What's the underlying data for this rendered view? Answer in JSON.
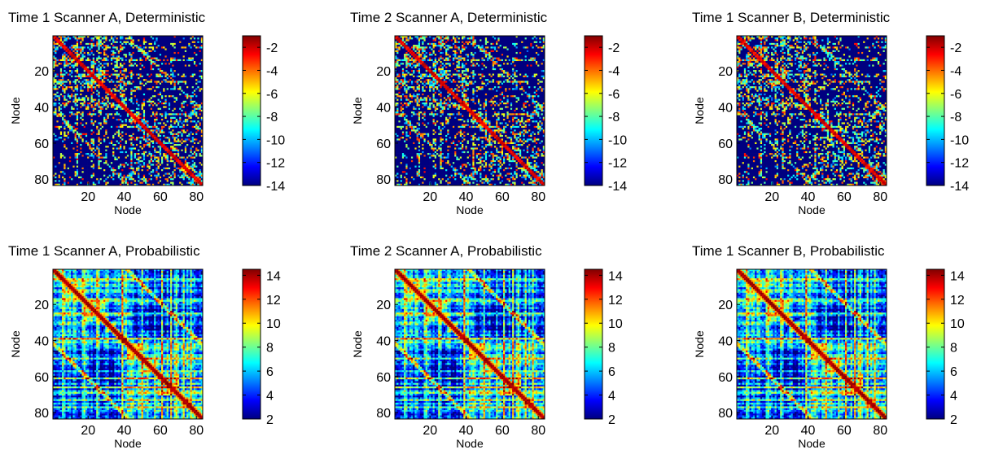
{
  "chart_data": [
    {
      "type": "heatmap",
      "title": "Time 1 Scanner A, Deterministic",
      "xlabel": "Node",
      "ylabel": "Node",
      "n_nodes": 83,
      "xticks": [
        20,
        40,
        60,
        80
      ],
      "yticks": [
        20,
        40,
        60,
        80
      ],
      "colorbar": {
        "ticks": [
          -2,
          -4,
          -6,
          -8,
          -10,
          -12,
          -14
        ],
        "range": [
          -14,
          -1
        ]
      },
      "colormap": "jet",
      "matrix_kind": "deterministic",
      "seed": 11
    },
    {
      "type": "heatmap",
      "title": "Time 2 Scanner A, Deterministic",
      "xlabel": "Node",
      "ylabel": "Node",
      "n_nodes": 83,
      "xticks": [
        20,
        40,
        60,
        80
      ],
      "yticks": [
        20,
        40,
        60,
        80
      ],
      "colorbar": {
        "ticks": [
          -2,
          -4,
          -6,
          -8,
          -10,
          -12,
          -14
        ],
        "range": [
          -14,
          -1
        ]
      },
      "colormap": "jet",
      "matrix_kind": "deterministic",
      "seed": 12
    },
    {
      "type": "heatmap",
      "title": "Time 1 Scanner B, Deterministic",
      "xlabel": "Node",
      "ylabel": "Node",
      "n_nodes": 83,
      "xticks": [
        20,
        40,
        60,
        80
      ],
      "yticks": [
        20,
        40,
        60,
        80
      ],
      "colorbar": {
        "ticks": [
          -2,
          -4,
          -6,
          -8,
          -10,
          -12,
          -14
        ],
        "range": [
          -14,
          -1
        ]
      },
      "colormap": "jet",
      "matrix_kind": "deterministic",
      "seed": 13
    },
    {
      "type": "heatmap",
      "title": "Time 1 Scanner A, Probabilistic",
      "xlabel": "Node",
      "ylabel": "Node",
      "n_nodes": 83,
      "xticks": [
        20,
        40,
        60,
        80
      ],
      "yticks": [
        20,
        40,
        60,
        80
      ],
      "colorbar": {
        "ticks": [
          14,
          12,
          10,
          8,
          6,
          4,
          2
        ],
        "range": [
          2,
          14.5
        ]
      },
      "colormap": "jet",
      "matrix_kind": "probabilistic",
      "seed": 21
    },
    {
      "type": "heatmap",
      "title": "Time 2 Scanner A, Probabilistic",
      "xlabel": "Node",
      "ylabel": "Node",
      "n_nodes": 83,
      "xticks": [
        20,
        40,
        60,
        80
      ],
      "yticks": [
        20,
        40,
        60,
        80
      ],
      "colorbar": {
        "ticks": [
          14,
          12,
          10,
          8,
          6,
          4,
          2
        ],
        "range": [
          2,
          14.5
        ]
      },
      "colormap": "jet",
      "matrix_kind": "probabilistic",
      "seed": 22
    },
    {
      "type": "heatmap",
      "title": "Time 1 Scanner B, Probabilistic",
      "xlabel": "Node",
      "ylabel": "Node",
      "n_nodes": 83,
      "xticks": [
        20,
        40,
        60,
        80
      ],
      "yticks": [
        20,
        40,
        60,
        80
      ],
      "colorbar": {
        "ticks": [
          14,
          12,
          10,
          8,
          6,
          4,
          2
        ],
        "range": [
          2,
          14.5
        ]
      },
      "colormap": "jet",
      "matrix_kind": "probabilistic",
      "seed": 23
    }
  ]
}
